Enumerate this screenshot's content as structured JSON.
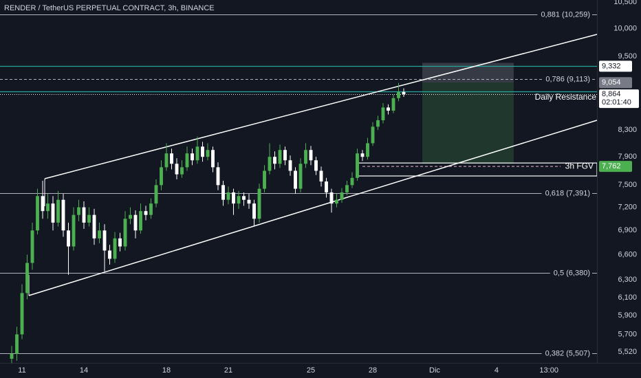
{
  "chart_data": {
    "type": "candlestick",
    "title": "RENDER / TetherUS PERPETUAL CONTRACT, 3h, BINANCE",
    "log": true,
    "grid": false,
    "up_color": "#4caf50",
    "down_color": "#ffffff",
    "level_color": "#b2b5be",
    "resistance_color": "#26a69a",
    "ylim": [
      5409,
      10540
    ],
    "yticks": [
      {
        "value": 10500,
        "label": "10,500"
      },
      {
        "value": 10000,
        "label": "10,000"
      },
      {
        "value": 9500,
        "label": "9,500"
      },
      {
        "value": 8300,
        "label": "8,300"
      },
      {
        "value": 7900,
        "label": "7,900"
      },
      {
        "value": 7500,
        "label": "7,500"
      },
      {
        "value": 7200,
        "label": "7,200"
      },
      {
        "value": 6900,
        "label": "6,900"
      },
      {
        "value": 6600,
        "label": "6,600"
      },
      {
        "value": 6300,
        "label": "6,300"
      },
      {
        "value": 6100,
        "label": "6,100"
      },
      {
        "value": 5900,
        "label": "5,900"
      },
      {
        "value": 5700,
        "label": "5,700"
      },
      {
        "value": 5520,
        "label": "5,520"
      }
    ],
    "xlim": [
      9.933,
      38.867
    ],
    "xticks": [
      11,
      14,
      18,
      21,
      25,
      28,
      {
        "value": 31,
        "label": "Dic"
      },
      {
        "value": 34,
        "label": "4"
      },
      {
        "value": 36.54,
        "label": "13:00"
      }
    ],
    "x": [
      10.5,
      10.75,
      11,
      11.25,
      11.5,
      11.75,
      12,
      12.25,
      12.5,
      12.75,
      13,
      13.25,
      13.5,
      13.75,
      14,
      14.25,
      14.5,
      14.75,
      15,
      15.25,
      15.5,
      15.75,
      16,
      16.25,
      16.5,
      16.75,
      17,
      17.25,
      17.5,
      17.75,
      18,
      18.25,
      18.5,
      18.75,
      19,
      19.25,
      19.5,
      19.75,
      20,
      20.25,
      20.5,
      20.75,
      21,
      21.25,
      21.5,
      21.75,
      22,
      22.25,
      22.5,
      22.75,
      23,
      23.25,
      23.5,
      23.75,
      24,
      24.25,
      24.5,
      24.75,
      25,
      25.25,
      25.5,
      25.75,
      26,
      26.25,
      26.5,
      26.75,
      27,
      27.25,
      27.5,
      27.75,
      28,
      28.25,
      28.5,
      28.75,
      29,
      29.25,
      29.5
    ],
    "open": [
      5450,
      5500,
      5700,
      6150,
      6500,
      6900,
      7350,
      7150,
      7250,
      7000,
      7300,
      6900,
      6700,
      7100,
      7200,
      7000,
      7100,
      6800,
      6900,
      6650,
      6550,
      6800,
      6700,
      7050,
      7100,
      6900,
      7150,
      7100,
      7250,
      7500,
      7750,
      7950,
      7800,
      7650,
      7750,
      7950,
      7850,
      8050,
      7900,
      8000,
      7750,
      7500,
      7300,
      7400,
      7250,
      7350,
      7300,
      7250,
      7050,
      7450,
      7700,
      7900,
      7800,
      8000,
      7850,
      7700,
      7450,
      7800,
      8000,
      7850,
      7700,
      7550,
      7400,
      7250,
      7300,
      7400,
      7500,
      7600,
      7950,
      7900,
      8100,
      8350,
      8450,
      8650,
      8600,
      8800,
      8900
    ],
    "high": [
      5580,
      5780,
      6250,
      6600,
      7000,
      7450,
      7560,
      7380,
      7350,
      7420,
      7380,
      7000,
      7200,
      7300,
      7280,
      7200,
      7180,
      7000,
      6980,
      6720,
      6880,
      6870,
      7150,
      7200,
      7160,
      7250,
      7220,
      7320,
      7580,
      7850,
      8100,
      8020,
      7880,
      7850,
      8050,
      8020,
      8200,
      8120,
      8100,
      8050,
      7820,
      7560,
      7480,
      7450,
      7420,
      7400,
      7380,
      7300,
      7520,
      7780,
      8100,
      7980,
      8080,
      8050,
      7920,
      7750,
      7880,
      8100,
      8060,
      7900,
      7760,
      7600,
      7450,
      7380,
      7460,
      7560,
      7680,
      8020,
      8000,
      8180,
      8420,
      8520,
      8720,
      8700,
      8860,
      9050,
      8960
    ],
    "low": [
      5400,
      5430,
      5650,
      6080,
      6420,
      6850,
      7050,
      7050,
      6900,
      6950,
      6820,
      6360,
      6650,
      7020,
      6920,
      6950,
      6720,
      6740,
      6400,
      6480,
      6500,
      6640,
      6650,
      6980,
      6800,
      6860,
      7030,
      7050,
      7200,
      7430,
      7700,
      7720,
      7580,
      7600,
      7700,
      7780,
      7800,
      7830,
      7850,
      7680,
      7430,
      7220,
      7240,
      7100,
      7180,
      7220,
      7180,
      6950,
      7000,
      7400,
      7650,
      7720,
      7740,
      7780,
      7630,
      7380,
      7400,
      7740,
      7780,
      7640,
      7480,
      7330,
      7130,
      7200,
      7260,
      7360,
      7460,
      7560,
      7840,
      7860,
      8060,
      8300,
      8400,
      8540,
      8560,
      8750,
      8820
    ],
    "close": [
      5500,
      5700,
      6150,
      6500,
      6900,
      7350,
      7150,
      7250,
      7000,
      7300,
      6900,
      6700,
      7100,
      7200,
      7000,
      7100,
      6800,
      6900,
      6650,
      6550,
      6800,
      6700,
      7050,
      7100,
      6900,
      7150,
      7100,
      7250,
      7500,
      7750,
      7950,
      7800,
      7650,
      7750,
      7950,
      7850,
      8050,
      7900,
      8000,
      7750,
      7500,
      7300,
      7400,
      7250,
      7350,
      7300,
      7250,
      7050,
      7450,
      7700,
      7900,
      7800,
      8000,
      7850,
      7700,
      7450,
      7800,
      8000,
      7850,
      7700,
      7550,
      7400,
      7250,
      7300,
      7400,
      7500,
      7600,
      7950,
      7900,
      8100,
      8350,
      8450,
      8650,
      8600,
      8800,
      8900,
      8864
    ],
    "levels": [
      {
        "value": 10259,
        "label": "0,881 (10,259)",
        "dashed": false
      },
      {
        "value": 9113,
        "label": "0,786 (9,113)",
        "dashed": true
      },
      {
        "value": 7391,
        "label": "0,618 (7,391)",
        "dashed": false
      },
      {
        "value": 6380,
        "label": "0,5 (6,380)",
        "dashed": false
      },
      {
        "value": 5507,
        "label": "0,382 (5,507)",
        "dashed": false
      }
    ],
    "resistance_lines": [
      {
        "value": 9332,
        "label": "9,332"
      },
      {
        "value": 8910,
        "label": "Daily Resistance"
      }
    ],
    "position": {
      "stop": 9390,
      "entry": {
        "value": 9054,
        "label": "9,054"
      },
      "target": 7800,
      "x_start": 30.4,
      "x_end": 34.83
    },
    "fvg": {
      "label": "3h FGV",
      "high": 7811,
      "low": 7627,
      "mid": {
        "value": 7762,
        "label": "7,762"
      },
      "x_start": 27.3
    },
    "last_price": {
      "value": 8864,
      "label": "8,864",
      "countdown": "02:01:40"
    }
  }
}
